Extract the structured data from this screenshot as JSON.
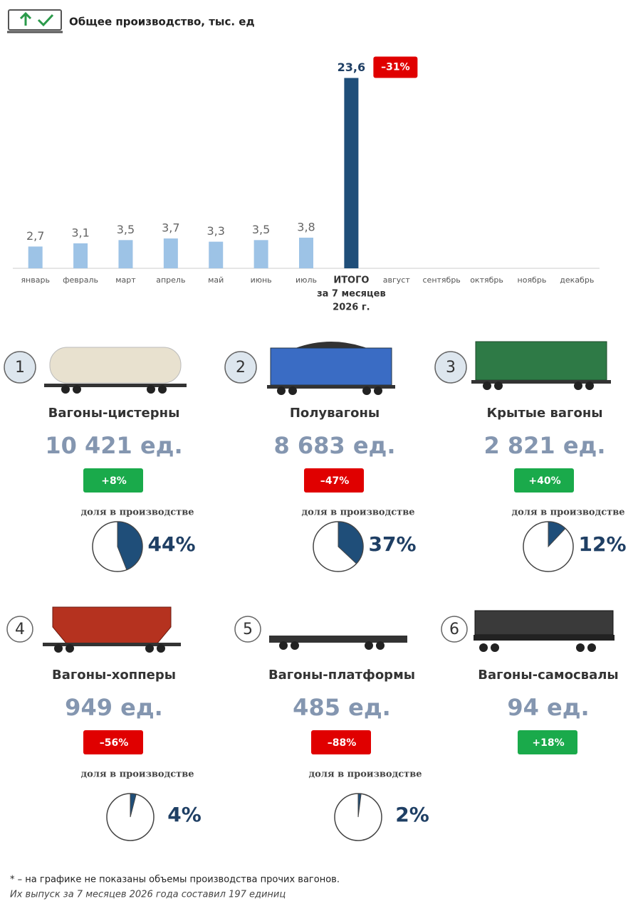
{
  "header": {
    "title": "Общее производство, тыс. ед"
  },
  "chart_data": {
    "type": "bar",
    "categories": [
      "январь",
      "февраль",
      "март",
      "апрель",
      "май",
      "июнь",
      "июль",
      "ИТОГО",
      "август",
      "сентябрь",
      "октябрь",
      "ноябрь",
      "декабрь"
    ],
    "total_note": [
      "за 7 месяцев",
      "2026 г."
    ],
    "values": [
      2.7,
      3.1,
      3.5,
      3.7,
      3.3,
      3.5,
      3.8,
      23.6,
      null,
      null,
      null,
      null,
      null
    ],
    "value_labels": [
      "2,7",
      "3,1",
      "3,5",
      "3,7",
      "3,3",
      "3,5",
      "3,8",
      "23,6",
      null,
      null,
      null,
      null,
      null
    ],
    "colors": [
      "#9dc3e6",
      "#9dc3e6",
      "#9dc3e6",
      "#9dc3e6",
      "#9dc3e6",
      "#9dc3e6",
      "#9dc3e6",
      "#1f4e79",
      null,
      null,
      null,
      null,
      null
    ],
    "ylim": [
      0,
      24
    ],
    "annotation": {
      "text": "–31%",
      "color": "#e00000"
    }
  },
  "cards": [
    {
      "number": "1",
      "title": "Вагоны-цистерны",
      "output": "10 421 ед.",
      "change": "+8%",
      "change_color": "#1aaa4b",
      "share": {
        "type": "pie",
        "title": "доля в производстве",
        "values": [
          44
        ],
        "value_labels": [
          "44%"
        ],
        "color": "#1f4e79"
      }
    },
    {
      "number": "2",
      "title": "Полувагоны",
      "output": "8 683 ед.",
      "change": "–47%",
      "change_color": "#e00000",
      "share": {
        "type": "pie",
        "title": "доля в производстве",
        "values": [
          37
        ],
        "value_labels": [
          "37%"
        ],
        "color": "#1f4e79"
      }
    },
    {
      "number": "3",
      "title": "Крытые вагоны",
      "output": "2 821 ед.",
      "change": "+40%",
      "change_color": "#1aaa4b",
      "share": {
        "type": "pie",
        "title": "доля в производстве",
        "values": [
          12
        ],
        "value_labels": [
          "12%"
        ],
        "color": "#1f4e79"
      }
    },
    {
      "number": "4",
      "title": "Вагоны-хопперы",
      "output": "949 ед.",
      "change": "–56%",
      "change_color": "#e00000",
      "share": {
        "type": "pie",
        "title": "доля в производстве",
        "values": [
          4
        ],
        "value_labels": [
          "4%"
        ],
        "color": "#1f4e79"
      }
    },
    {
      "number": "5",
      "title": "Вагоны-платформы",
      "output": "485 ед.",
      "change": "–88%",
      "change_color": "#e00000",
      "share": {
        "type": "pie",
        "title": "доля в производстве",
        "values": [
          2
        ],
        "value_labels": [
          "2%"
        ],
        "color": "#1f4e79"
      }
    },
    {
      "number": "6",
      "title": "Вагоны-самосвалы",
      "output": "94 ед.",
      "change": "+18%",
      "change_color": "#1aaa4b"
    }
  ],
  "footnote": [
    "* – на графике не показаны объемы производства прочих вагонов.",
    "Их выпуск за 7 месяцев 2026 года составил 197 единиц"
  ]
}
